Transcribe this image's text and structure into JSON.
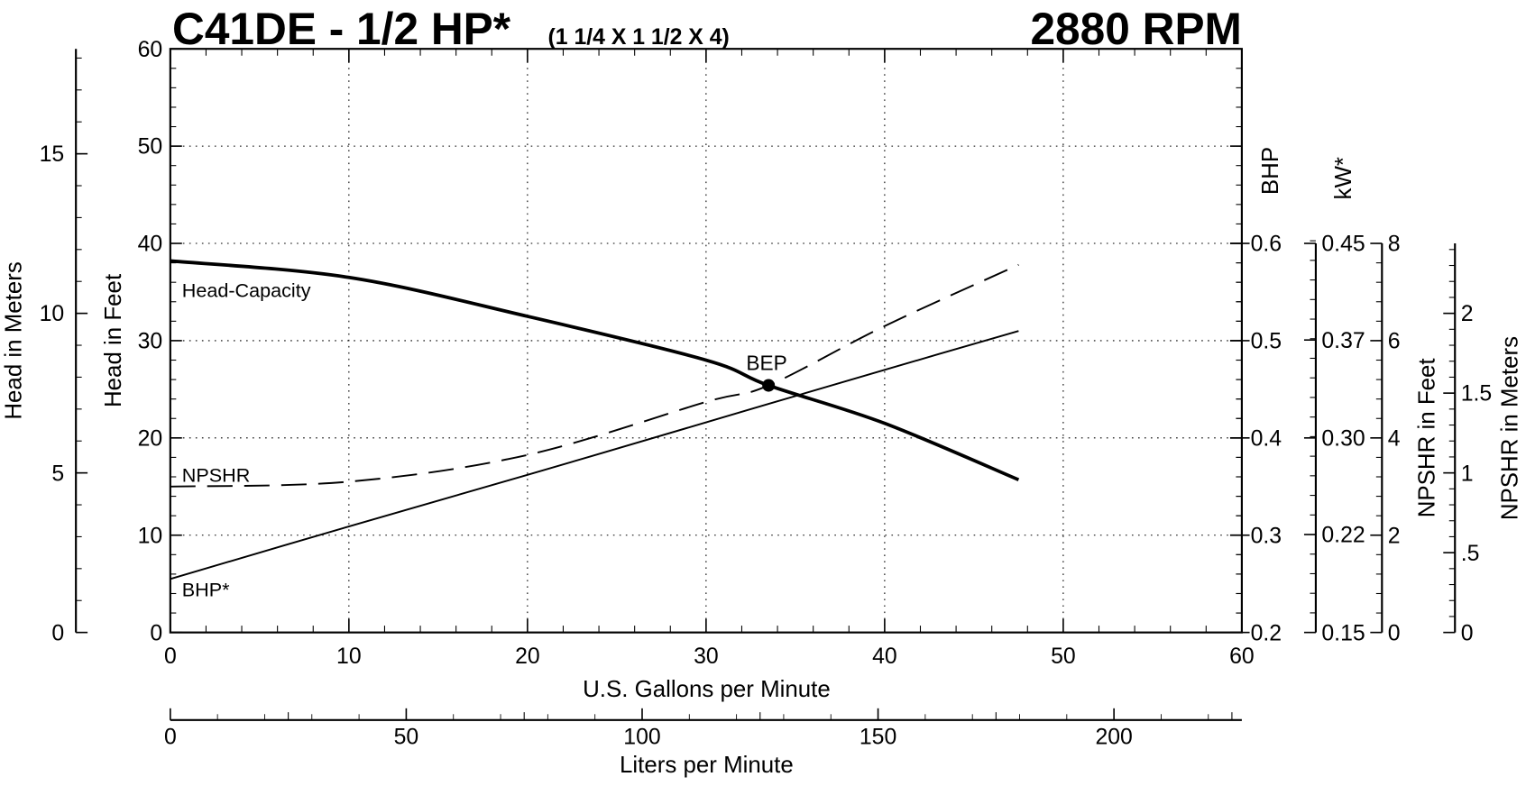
{
  "chart_data": {
    "type": "line",
    "title": "C41DE - 1/2 HP*",
    "subtitle": "(1 1/4 X 1 1/2 X 4)",
    "speed": "2880 RPM",
    "xlabel": "U.S. Gallons per Minute",
    "xlim": [
      0,
      60
    ],
    "xticks": [
      0,
      10,
      20,
      30,
      40,
      50,
      60
    ],
    "x2label": "Liters per Minute",
    "x2lim": [
      0,
      227.1
    ],
    "x2ticks": [
      0,
      50,
      100,
      150,
      200
    ],
    "grid": true,
    "axes": {
      "head_m": {
        "label": "Head in Meters",
        "lim": [
          0,
          18.288
        ],
        "ticks": [
          0,
          5,
          10,
          15
        ]
      },
      "head_ft": {
        "label": "Head in Feet",
        "lim": [
          0,
          60
        ],
        "ticks": [
          0,
          10,
          20,
          30,
          40,
          50,
          60
        ]
      },
      "bhp": {
        "label": "BHP",
        "lim": [
          0.2,
          0.6
        ],
        "ticks": [
          0.2,
          0.3,
          0.4,
          0.5,
          0.6
        ]
      },
      "kw": {
        "label": "kW*",
        "lim": [
          0.149,
          0.447
        ],
        "ticks": [
          {
            "value": 0.149,
            "label": "0.15"
          },
          {
            "value": 0.224,
            "label": "0.22"
          },
          {
            "value": 0.298,
            "label": "0.30"
          },
          {
            "value": 0.373,
            "label": "0.37"
          },
          {
            "value": 0.447,
            "label": "0.45"
          }
        ]
      },
      "npshr_ft": {
        "label": "NPSHR in Feet",
        "lim": [
          0,
          8
        ],
        "ticks": [
          0,
          2,
          4,
          6,
          8
        ]
      },
      "npshr_m": {
        "label": "NPSHR in Meters",
        "lim": [
          0,
          2.4384
        ],
        "ticks": [
          0,
          {
            "value": 0.5,
            "label": ".5"
          },
          1,
          1.5,
          2
        ]
      }
    },
    "x": [
      0,
      10,
      20,
      30,
      33.5,
      40,
      47.5
    ],
    "series": [
      {
        "name": "Head-Capacity",
        "axis": "head_ft",
        "style": "thick",
        "color": "#000000",
        "values": [
          38.2,
          36.5,
          32.5,
          28,
          25.4,
          21.5,
          15.7
        ]
      },
      {
        "name": "NPSHR",
        "axis": "npshr_ft",
        "style": "dashed",
        "color": "#000000",
        "values": [
          3.0,
          3.1,
          3.65,
          4.74,
          5.08,
          6.3,
          7.56
        ]
      },
      {
        "name": "BHP*",
        "axis": "bhp",
        "style": "thin",
        "color": "#000000",
        "values": [
          0.255,
          0.309,
          0.362,
          0.416,
          0.435,
          0.47,
          0.51
        ]
      }
    ],
    "bep": {
      "label": "BEP",
      "x": 33.5,
      "y": 25.4,
      "axis": "head_ft"
    }
  }
}
